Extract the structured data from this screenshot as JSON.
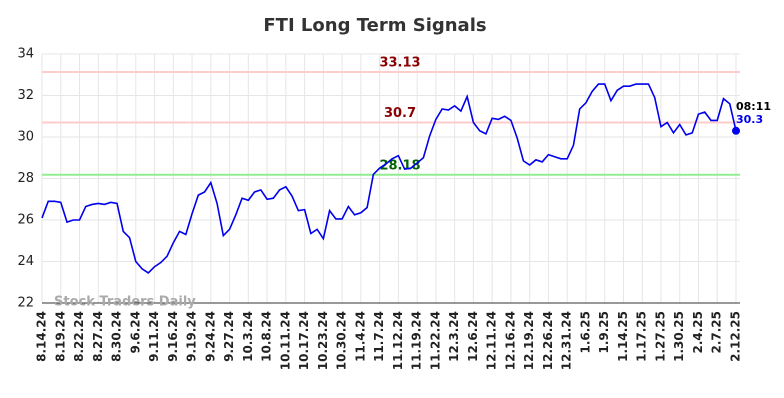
{
  "chart_data": {
    "type": "line",
    "title": "FTI Long Term Signals",
    "categories": [
      "8.14.24",
      null,
      null,
      "8.19.24",
      null,
      null,
      "8.22.24",
      null,
      null,
      "8.27.24",
      null,
      null,
      "8.30.24",
      null,
      null,
      "9.6.24",
      null,
      null,
      "9.11.24",
      null,
      null,
      "9.16.24",
      null,
      null,
      "9.19.24",
      null,
      null,
      "9.24.24",
      null,
      null,
      "9.27.24",
      null,
      null,
      "10.3.24",
      null,
      null,
      "10.8.24",
      null,
      null,
      "10.11.24",
      null,
      null,
      "10.17.24",
      null,
      null,
      "10.23.24",
      null,
      null,
      "10.30.24",
      null,
      null,
      "11.4.24",
      null,
      null,
      "11.7.24",
      null,
      null,
      "11.12.24",
      null,
      null,
      "11.19.24",
      null,
      null,
      "11.22.24",
      null,
      null,
      "12.3.24",
      null,
      null,
      "12.6.24",
      null,
      null,
      "12.11.24",
      null,
      null,
      "12.16.24",
      null,
      null,
      "12.19.24",
      null,
      null,
      "12.26.24",
      null,
      null,
      "12.31.24",
      null,
      null,
      "1.6.25",
      null,
      null,
      "1.9.25",
      null,
      null,
      "1.14.25",
      null,
      null,
      "1.17.25",
      null,
      null,
      "1.27.25",
      null,
      null,
      "1.30.25",
      null,
      null,
      "2.4.25",
      null,
      null,
      "2.7.25",
      null,
      null,
      "2.12.25"
    ],
    "values": [
      26.1,
      26.9,
      26.9,
      26.85,
      25.9,
      26.0,
      26.0,
      26.65,
      26.75,
      26.8,
      26.75,
      26.85,
      26.8,
      25.45,
      25.15,
      24.0,
      23.65,
      23.45,
      23.75,
      23.95,
      24.25,
      24.9,
      25.45,
      25.3,
      26.3,
      27.2,
      27.35,
      27.8,
      26.8,
      25.25,
      25.55,
      26.25,
      27.05,
      26.95,
      27.35,
      27.45,
      27.0,
      27.05,
      27.45,
      27.6,
      27.15,
      26.45,
      26.5,
      25.35,
      25.55,
      25.1,
      26.45,
      26.05,
      26.05,
      26.65,
      26.25,
      26.35,
      26.6,
      28.2,
      28.5,
      28.7,
      28.95,
      29.1,
      28.45,
      28.5,
      28.75,
      29.0,
      30.05,
      30.85,
      31.35,
      31.3,
      31.5,
      31.25,
      31.95,
      30.7,
      30.3,
      30.15,
      30.9,
      30.85,
      31.0,
      30.8,
      29.95,
      28.85,
      28.65,
      28.9,
      28.8,
      29.15,
      29.05,
      28.95,
      28.95,
      29.6,
      31.35,
      31.65,
      32.2,
      32.55,
      32.55,
      31.75,
      32.25,
      32.45,
      32.45,
      32.55,
      32.55,
      32.55,
      31.9,
      30.5,
      30.7,
      30.2,
      30.6,
      30.1,
      30.2,
      31.1,
      31.2,
      30.8,
      30.8,
      31.85,
      31.6,
      30.3
    ],
    "color": "#0000ee",
    "reference_lines": [
      {
        "value": 33.13,
        "color": "#ffcccc",
        "label_color": "#8b0000"
      },
      {
        "value": 30.7,
        "color": "#ffcccc",
        "label_color": "#8b0000"
      },
      {
        "value": 28.18,
        "color": "#90ee90",
        "label_color": "#006400"
      }
    ],
    "last_time": "08:11",
    "watermark": "Stock Traders Daily",
    "ylim": [
      22,
      34
    ],
    "yticks": [
      22,
      24,
      26,
      28,
      30,
      32,
      34
    ],
    "grid": true
  }
}
